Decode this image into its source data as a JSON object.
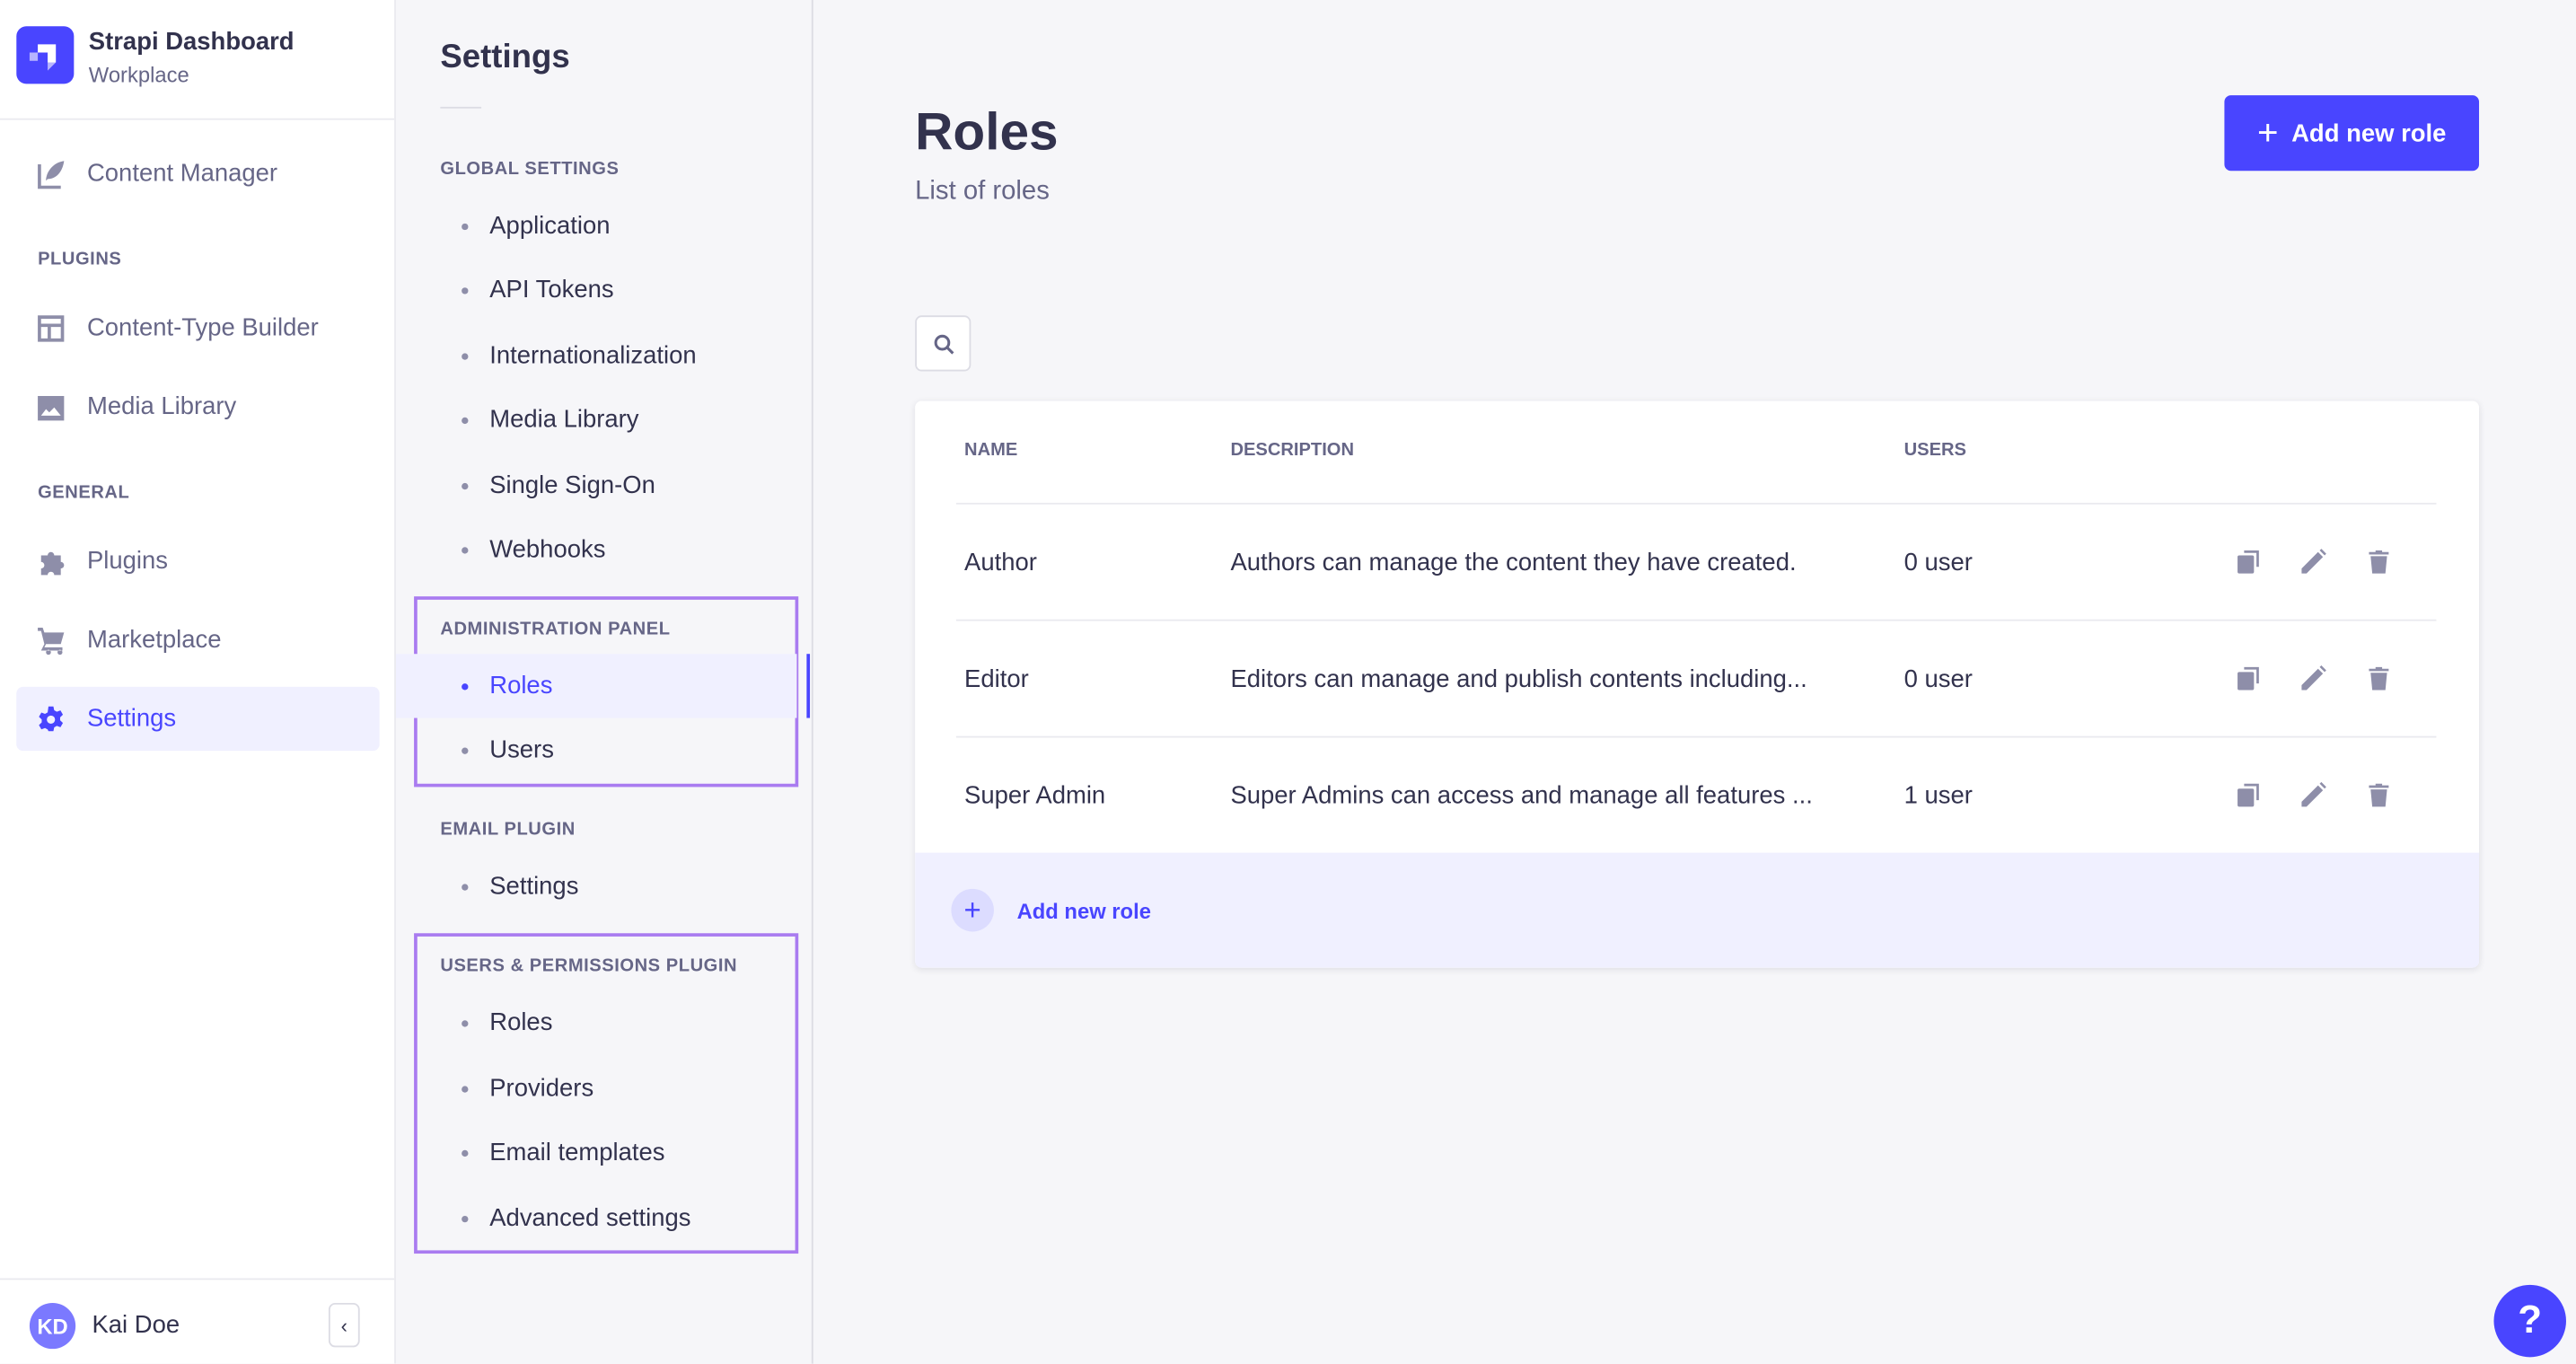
{
  "nav": {
    "brand": "Strapi Dashboard",
    "workplace": "Workplace",
    "content_manager": "Content Manager",
    "plugins_cat": "PLUGINS",
    "content_type_builder": "Content-Type Builder",
    "media_library": "Media Library",
    "general_cat": "GENERAL",
    "plugins": "Plugins",
    "marketplace": "Marketplace",
    "settings": "Settings",
    "user_initials": "KD",
    "user_name": "Kai Doe"
  },
  "settings": {
    "title": "Settings",
    "sections": [
      {
        "label": "GLOBAL SETTINGS",
        "items": [
          "Application",
          "API Tokens",
          "Internationalization",
          "Media Library",
          "Single Sign-On",
          "Webhooks"
        ]
      },
      {
        "label": "ADMINISTRATION PANEL",
        "items": [
          "Roles",
          "Users"
        ]
      },
      {
        "label": "EMAIL PLUGIN",
        "items": [
          "Settings"
        ]
      },
      {
        "label": "USERS & PERMISSIONS PLUGIN",
        "items": [
          "Roles",
          "Providers",
          "Email templates",
          "Advanced settings"
        ]
      }
    ],
    "active": "Roles"
  },
  "main": {
    "title": "Roles",
    "subtitle": "List of roles",
    "add_button": "Add new role",
    "columns": [
      "NAME",
      "DESCRIPTION",
      "USERS"
    ],
    "rows": [
      {
        "name": "Author",
        "description": "Authors can manage the content they have created.",
        "users": "0 user"
      },
      {
        "name": "Editor",
        "description": "Editors can manage and publish contents including...",
        "users": "0 user"
      },
      {
        "name": "Super Admin",
        "description": "Super Admins can access and manage all features ...",
        "users": "1 user"
      }
    ],
    "footer_add": "Add new role"
  },
  "help": "?",
  "colors": {
    "accent": "#4945ff",
    "highlight": "#a97bf0"
  }
}
